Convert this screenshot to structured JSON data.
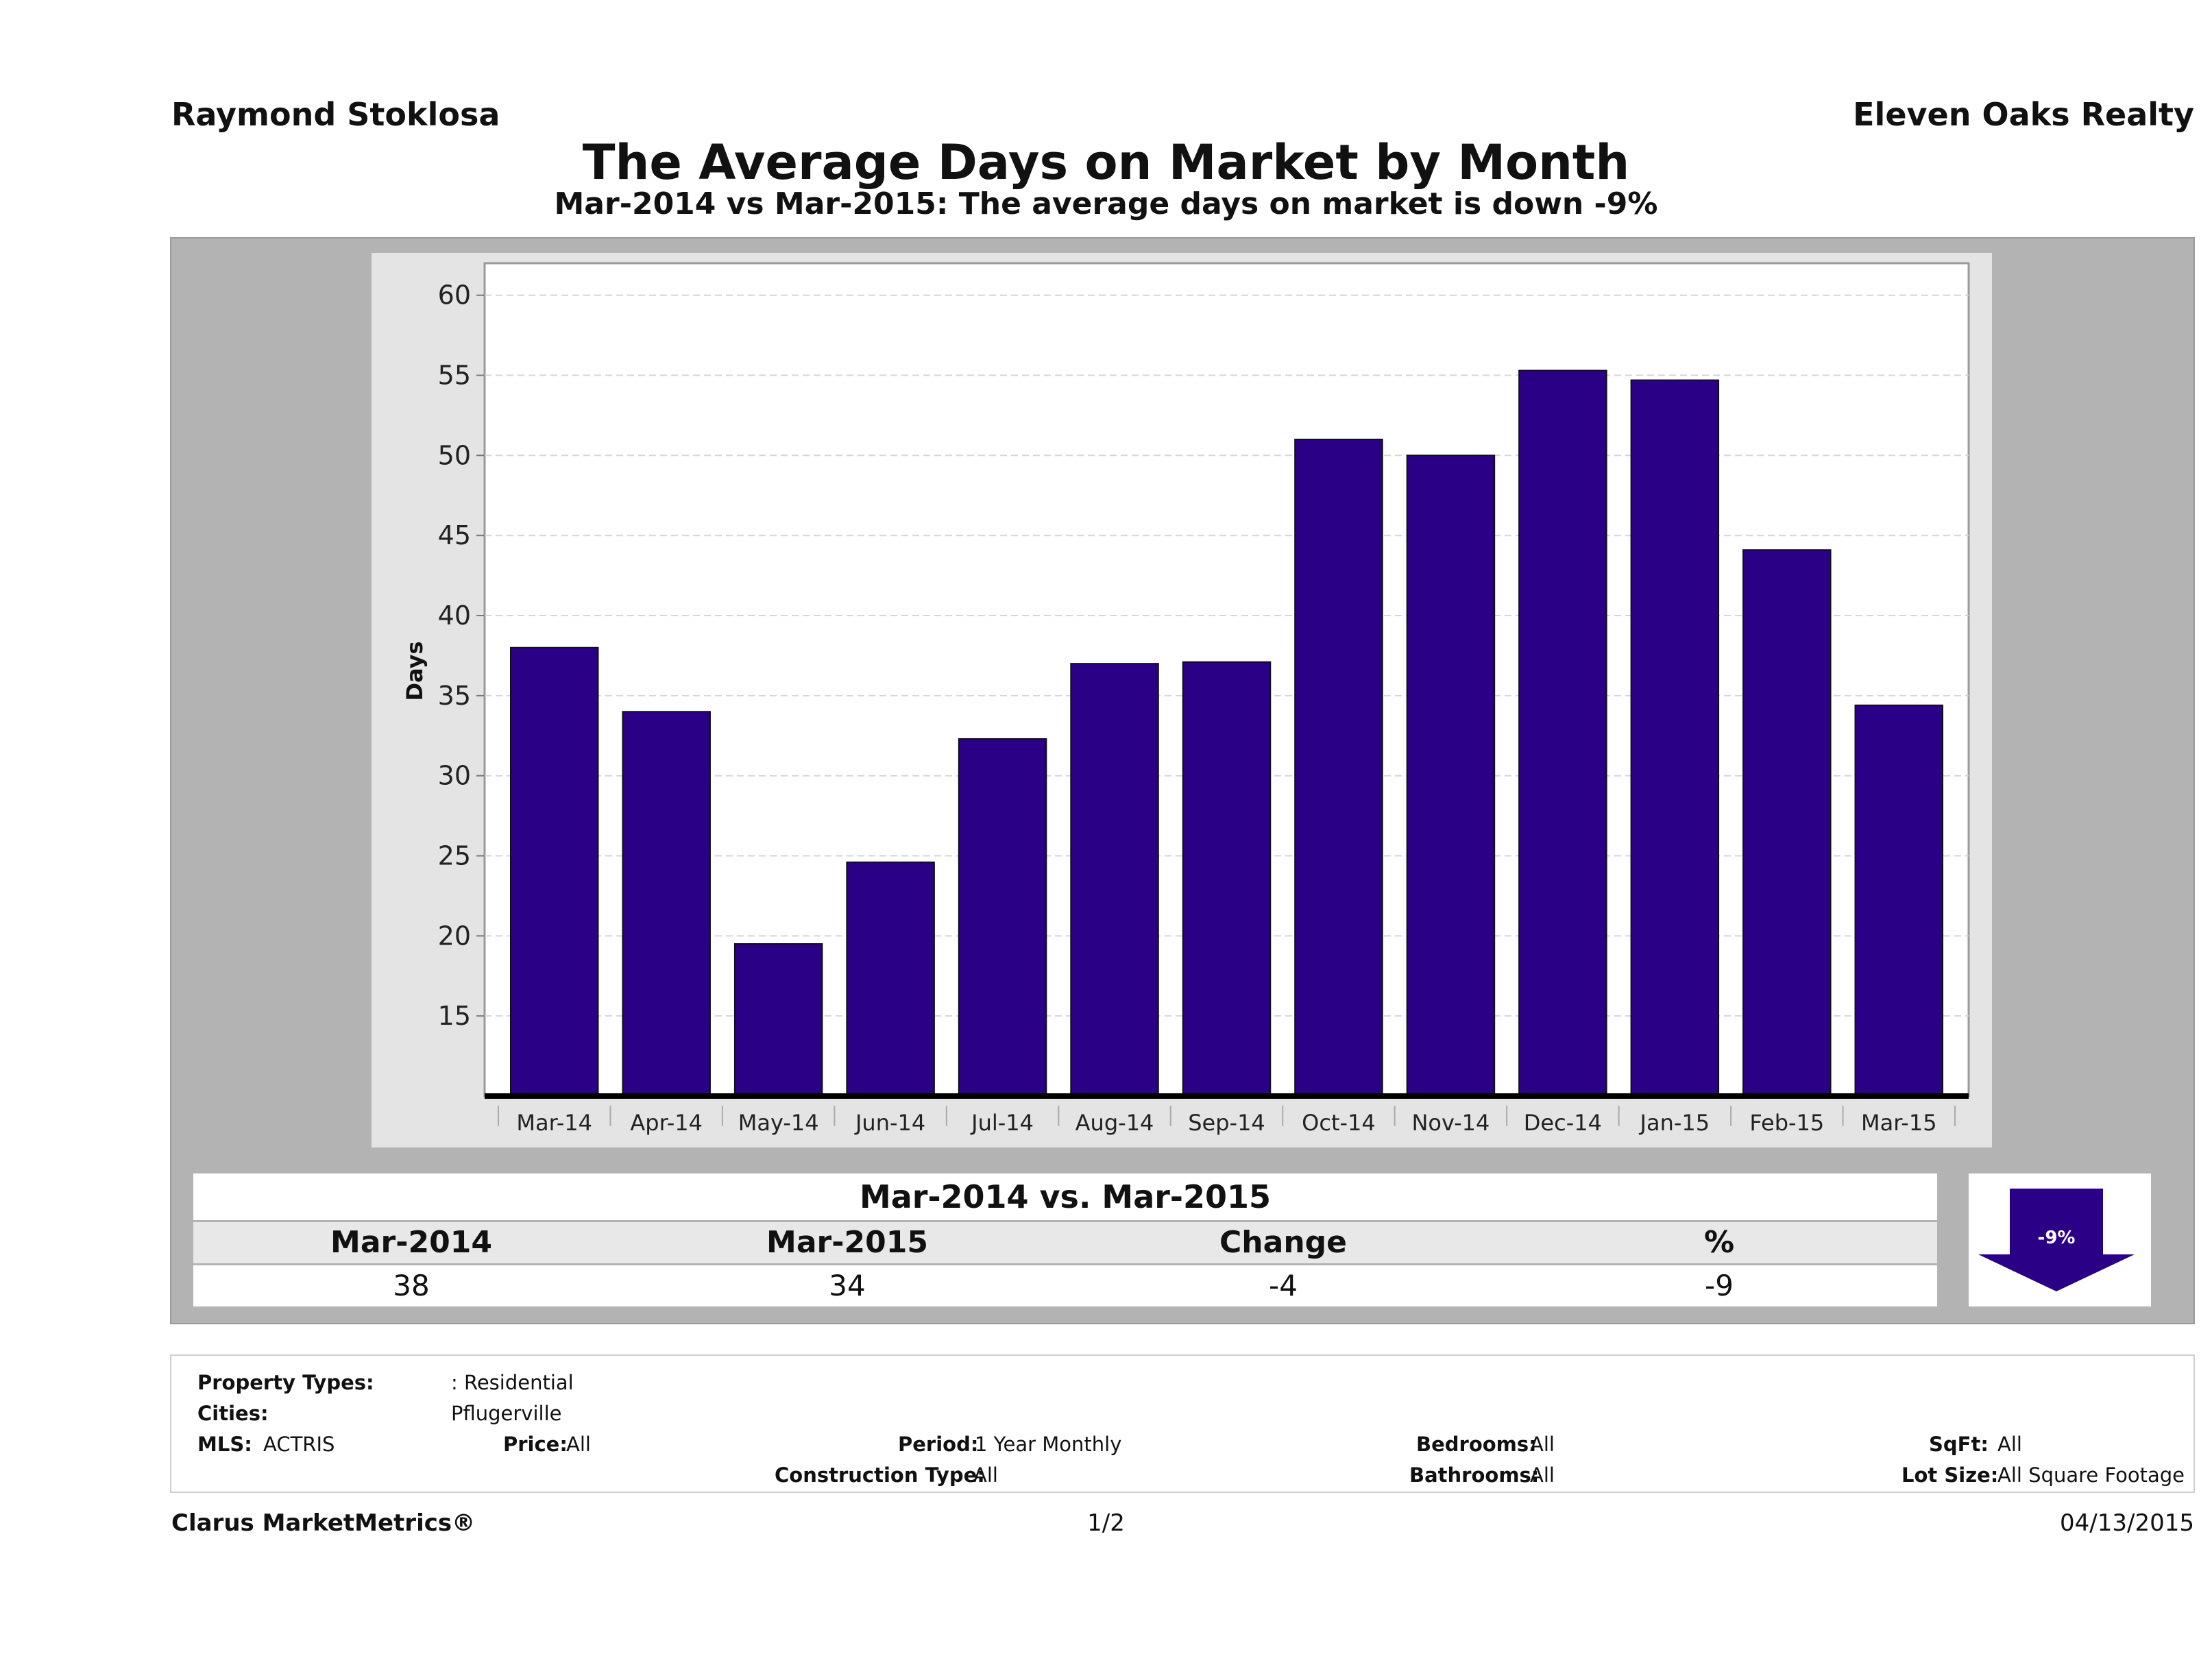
{
  "header": {
    "agent": "Raymond Stoklosa",
    "company": "Eleven Oaks Realty",
    "title": "The Average Days on Market by Month",
    "subtitle": "Mar-2014 vs Mar-2015: The average days on market is down -9%"
  },
  "chart_data": {
    "type": "bar",
    "ylabel": "Days",
    "xlabel": "",
    "ylim": [
      10,
      62
    ],
    "yticks": [
      15,
      20,
      25,
      30,
      35,
      40,
      45,
      50,
      55,
      60
    ],
    "grid": true,
    "bar_color": "#2a0087",
    "categories": [
      "Mar-14",
      "Apr-14",
      "May-14",
      "Jun-14",
      "Jul-14",
      "Aug-14",
      "Sep-14",
      "Oct-14",
      "Nov-14",
      "Dec-14",
      "Jan-15",
      "Feb-15",
      "Mar-15"
    ],
    "values": [
      38,
      34,
      19.5,
      24.6,
      32.3,
      37,
      37.1,
      51,
      50,
      55.3,
      54.7,
      44.1,
      34.4
    ]
  },
  "summary": {
    "title": "Mar-2014 vs. Mar-2015",
    "headers": [
      "Mar-2014",
      "Mar-2015",
      "Change",
      "%"
    ],
    "values": [
      "38",
      "34",
      "-4",
      "-9"
    ],
    "badge": "-9%",
    "badge_icon": "down-arrow-icon",
    "badge_color": "#2a0087"
  },
  "info": {
    "property_types_label": "Property Types:",
    "property_types_value": ": Residential",
    "cities_label": "Cities:",
    "cities_value": "Pflugerville",
    "mls_label": "MLS:",
    "mls_value": "ACTRIS",
    "price_label": "Price:",
    "price_value": "All",
    "period_label": "Period:",
    "period_value": "1 Year Monthly",
    "construction_label": "Construction Type:",
    "construction_value": "All",
    "bedrooms_label": "Bedrooms:",
    "bedrooms_value": "All",
    "bathrooms_label": "Bathrooms:",
    "bathrooms_value": "All",
    "sqft_label": "SqFt:",
    "sqft_value": "All",
    "lot_label": "Lot Size:",
    "lot_value": "All Square Footage"
  },
  "footer": {
    "brand": "Clarus MarketMetrics®",
    "page": "1/2",
    "date": "04/13/2015"
  }
}
